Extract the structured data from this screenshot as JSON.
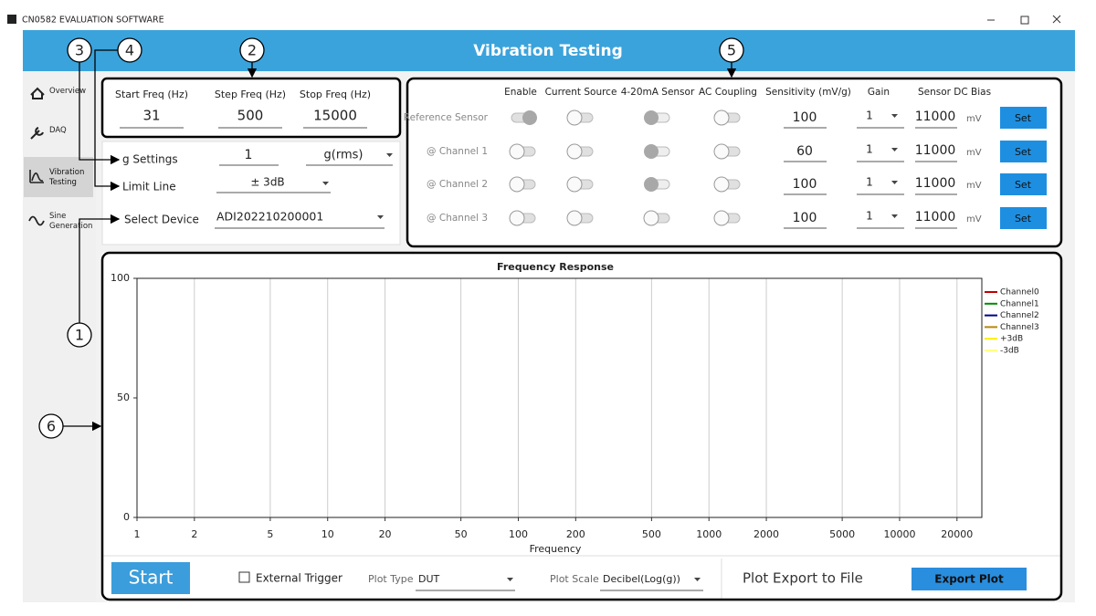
{
  "window": {
    "title": "CN0582 EVALUATION SOFTWARE"
  },
  "header": {
    "title": "Vibration Testing"
  },
  "sidebar": {
    "items": [
      "Overview",
      "DAQ",
      "Vibration Testing",
      "Sine Generation"
    ],
    "active": 2
  },
  "callouts": [
    "1",
    "2",
    "3",
    "4",
    "5",
    "6"
  ],
  "frequency": {
    "fields": [
      {
        "label": "Start Freq (Hz)",
        "value": 31
      },
      {
        "label": "Step Freq (Hz)",
        "value": 500
      },
      {
        "label": "Stop Freq (Hz)",
        "value": 15000
      }
    ]
  },
  "settings": {
    "g": {
      "label": "g Settings",
      "value": 1,
      "unit": "g(rms)"
    },
    "limit": {
      "label": "Limit Line",
      "value": "± 3dB"
    },
    "device": {
      "label": "Select Device",
      "value": "ADI202210200001"
    }
  },
  "sensors": {
    "columns": [
      "Enable",
      "Current Source",
      "4-20mA Sensor",
      "AC Coupling",
      "Sensitivity (mV/g)",
      "Gain",
      "Sensor DC Bias"
    ],
    "unit": "mV",
    "button": "Set",
    "rows": [
      {
        "name": "Reference Sensor",
        "toggles": [
          "on",
          "off",
          "disabled",
          "off"
        ],
        "sensitivity": 100,
        "gain": 1,
        "bias": 11000
      },
      {
        "name": "@ Channel 1",
        "toggles": [
          "off",
          "off",
          "disabled",
          "off"
        ],
        "sensitivity": 60,
        "gain": 1,
        "bias": 11000
      },
      {
        "name": "@ Channel 2",
        "toggles": [
          "off",
          "off",
          "disabled",
          "off"
        ],
        "sensitivity": 100,
        "gain": 1,
        "bias": 11000
      },
      {
        "name": "@ Channel 3",
        "toggles": [
          "off",
          "off",
          "off",
          "off"
        ],
        "sensitivity": 100,
        "gain": 1,
        "bias": 11000
      }
    ]
  },
  "chart_data": {
    "type": "line",
    "title": "Frequency Response",
    "x_label": "Frequency",
    "x_scale": "log",
    "xlim": [
      1,
      27000
    ],
    "xticks": [
      1,
      2,
      5,
      10,
      20,
      50,
      100,
      200,
      500,
      1000,
      2000,
      5000,
      10000,
      20000
    ],
    "ylim": [
      0,
      100
    ],
    "yticks": [
      0,
      50,
      100
    ],
    "grid": "x",
    "legend": "right",
    "x": [],
    "series": [
      {
        "name": "Channel0",
        "color": "#c00000",
        "values": []
      },
      {
        "name": "Channel1",
        "color": "#008a00",
        "values": []
      },
      {
        "name": "Channel2",
        "color": "#00008b",
        "values": []
      },
      {
        "name": "Channel3",
        "color": "#b8860b",
        "values": []
      },
      {
        "name": "+3dB",
        "color": "#ffee00",
        "values": []
      },
      {
        "name": "-3dB",
        "color": "#ffff80",
        "values": []
      }
    ]
  },
  "controls": {
    "start": "Start",
    "trigger": "External Trigger",
    "plot_type": {
      "label": "Plot Type",
      "value": "DUT"
    },
    "plot_scale": {
      "label": "Plot Scale",
      "value": "Decibel(Log(g))"
    },
    "export_label": "Plot Export to File",
    "export_button": "Export Plot"
  }
}
